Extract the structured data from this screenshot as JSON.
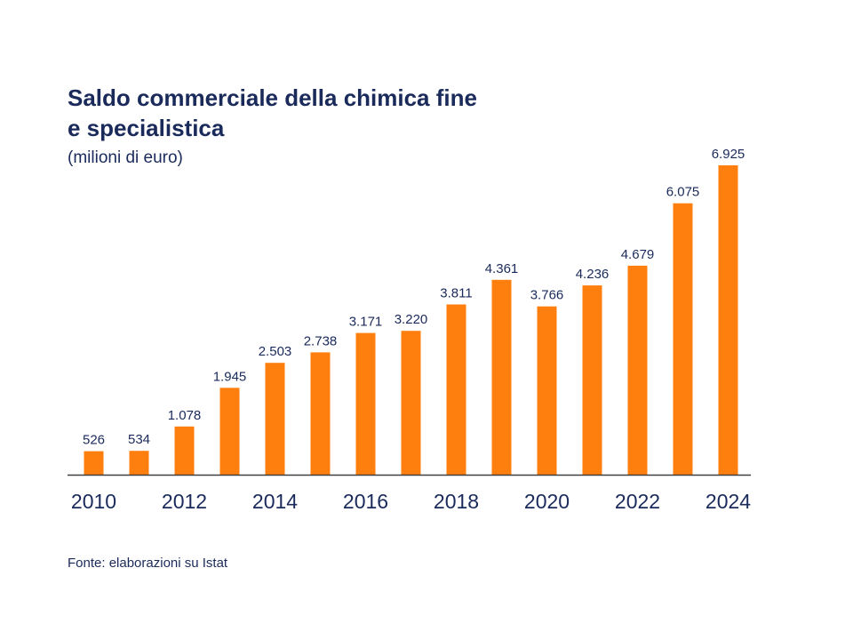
{
  "title": {
    "line1": "Saldo commerciale della chimica fine",
    "line2": "e specialistica"
  },
  "subtitle": "(milioni di euro)",
  "source": "Fonte: elaborazioni su Istat",
  "colors": {
    "bar": "#ff7f0e",
    "text": "#1a2a5a",
    "axis": "#404040"
  },
  "chart_data": {
    "type": "bar",
    "title": "Saldo commerciale della chimica fine e specialistica",
    "subtitle": "(milioni di euro)",
    "xlabel": "",
    "ylabel": "",
    "categories": [
      "2010",
      "2011",
      "2012",
      "2013",
      "2014",
      "2015",
      "2016",
      "2017",
      "2018",
      "2019",
      "2020",
      "2021",
      "2022",
      "2023",
      "2024"
    ],
    "values": [
      526,
      534,
      1078,
      1945,
      2503,
      2738,
      3171,
      3220,
      3811,
      4361,
      3766,
      4236,
      4679,
      6075,
      6925
    ],
    "data_labels": [
      "526",
      "534",
      "1.078",
      "1.945",
      "2.503",
      "2.738",
      "3.171",
      "3.220",
      "3.811",
      "4.361",
      "3.766",
      "4.236",
      "4.679",
      "6.075",
      "6.925"
    ],
    "tick_labels": [
      "2010",
      "2012",
      "2014",
      "2016",
      "2018",
      "2020",
      "2022",
      "2024"
    ],
    "ylim": [
      0,
      7000
    ],
    "grid": false,
    "legend": "none"
  }
}
